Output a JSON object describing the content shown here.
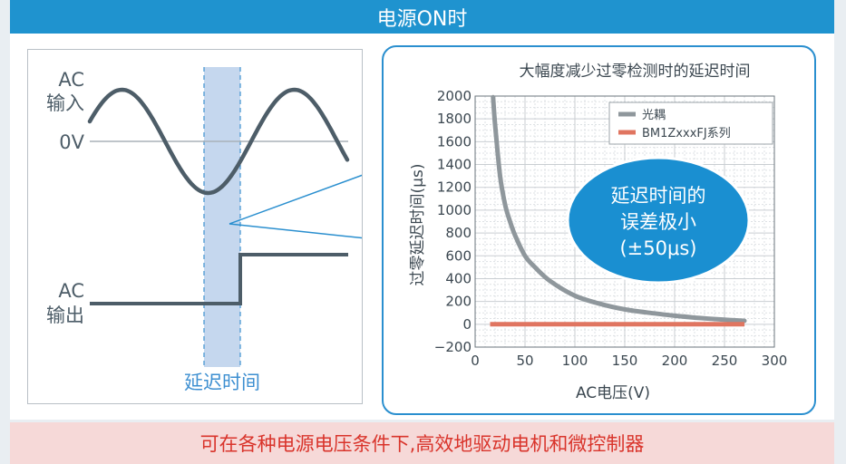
{
  "header": {
    "title": "电源ON时"
  },
  "left": {
    "ac_input_label_line1": "AC",
    "ac_input_label_line2": "输入",
    "zero_label": "0V",
    "ac_output_label_line1": "AC",
    "ac_output_label_line2": "输出",
    "delay_label": "延迟时间"
  },
  "callout": {
    "line1": "延迟时间的",
    "line2": "误差极小",
    "line3": "(±50μs)"
  },
  "footer": {
    "text": "可在各种电源电压条件下,高效地驱动电机和微控制器"
  },
  "colors": {
    "header_bg": "#1f93cf",
    "footer_bg": "#f6d9d8",
    "footer_text": "#d9342b",
    "wave": "#4d5d68",
    "delay_band": "#c5d7ee",
    "callout_bg": "#1a8fd1",
    "optocoupler": "#8f979c",
    "bm1z": "#e07560"
  },
  "chart_data": {
    "type": "line",
    "title": "大幅度减少过零检测时的延迟时间",
    "xlabel": "AC电压(V)",
    "ylabel": "过零延迟时间(μs)",
    "xlim": [
      0,
      300
    ],
    "ylim": [
      -200,
      2000
    ],
    "xticks": [
      "0",
      "50",
      "100",
      "150",
      "200",
      "250",
      "300"
    ],
    "yticks": [
      "2000",
      "1800",
      "1600",
      "1400",
      "1200",
      "1000",
      "800",
      "600",
      "400",
      "200",
      "0",
      "−200"
    ],
    "grid": true,
    "legend_position": "top-right",
    "series": [
      {
        "name": "光耦",
        "color": "#8f979c",
        "points": [
          [
            18,
            1990
          ],
          [
            20,
            1750
          ],
          [
            25,
            1300
          ],
          [
            30,
            1050
          ],
          [
            35,
            900
          ],
          [
            40,
            780
          ],
          [
            50,
            600
          ],
          [
            60,
            500
          ],
          [
            75,
            380
          ],
          [
            100,
            250
          ],
          [
            125,
            180
          ],
          [
            150,
            130
          ],
          [
            175,
            100
          ],
          [
            200,
            75
          ],
          [
            225,
            55
          ],
          [
            250,
            40
          ],
          [
            270,
            30
          ]
        ]
      },
      {
        "name": "BM1ZxxxFJ系列",
        "color": "#e07560",
        "points": [
          [
            15,
            0
          ],
          [
            50,
            0
          ],
          [
            100,
            0
          ],
          [
            150,
            0
          ],
          [
            200,
            0
          ],
          [
            250,
            0
          ],
          [
            270,
            0
          ]
        ]
      }
    ]
  }
}
